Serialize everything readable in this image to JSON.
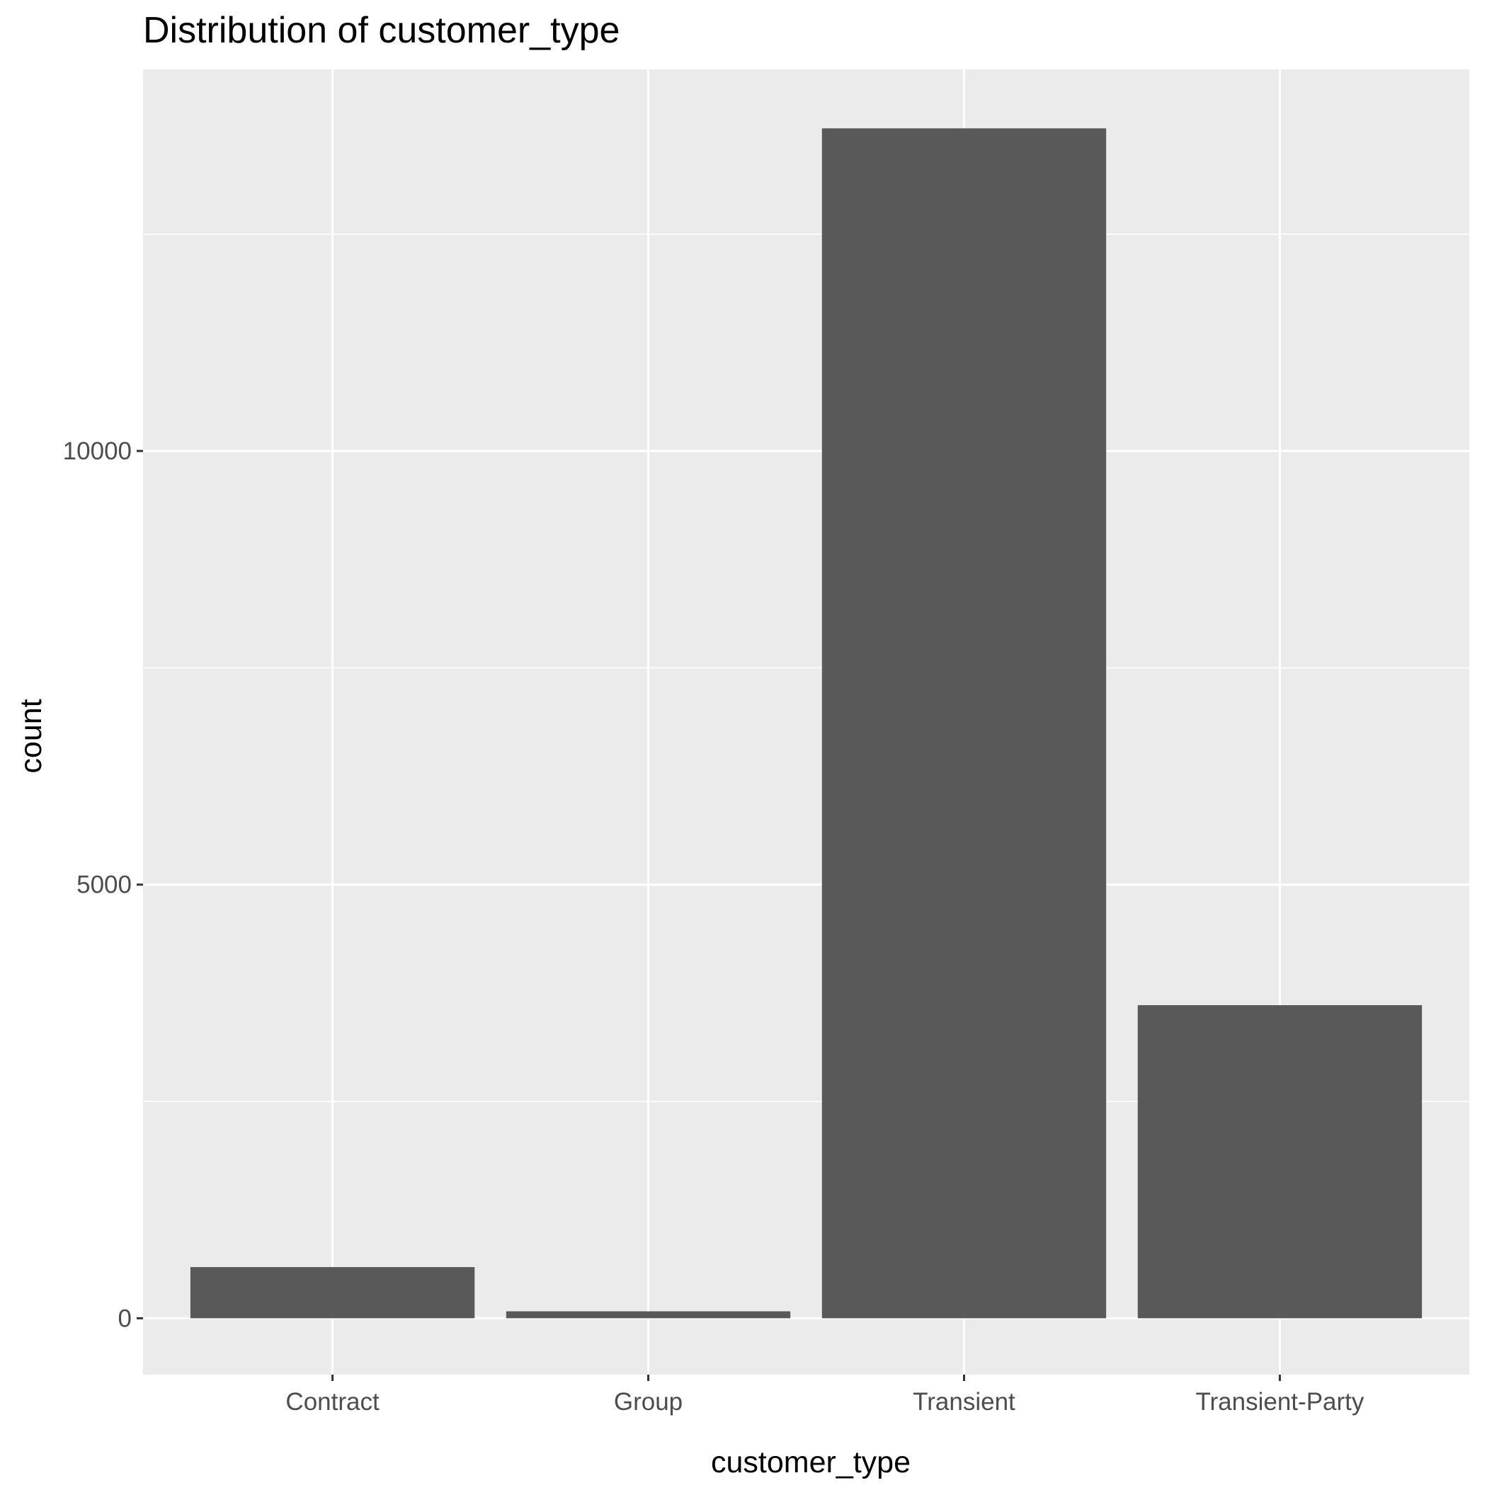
{
  "chart_data": {
    "type": "bar",
    "title": "Distribution of customer_type",
    "xlabel": "customer_type",
    "ylabel": "count",
    "categories": [
      "Contract",
      "Group",
      "Transient",
      "Transient-Party"
    ],
    "values": [
      590,
      80,
      13720,
      3610
    ],
    "ylim": [
      -650,
      14400
    ],
    "yticks": [
      0,
      5000,
      10000
    ],
    "ytick_labels": [
      "0",
      "5000",
      "10000"
    ],
    "grid": true,
    "legend": "none",
    "colors": {
      "bar": "#595959",
      "panel": "#ebebeb",
      "grid": "#ffffff",
      "tick": "#333333"
    }
  }
}
